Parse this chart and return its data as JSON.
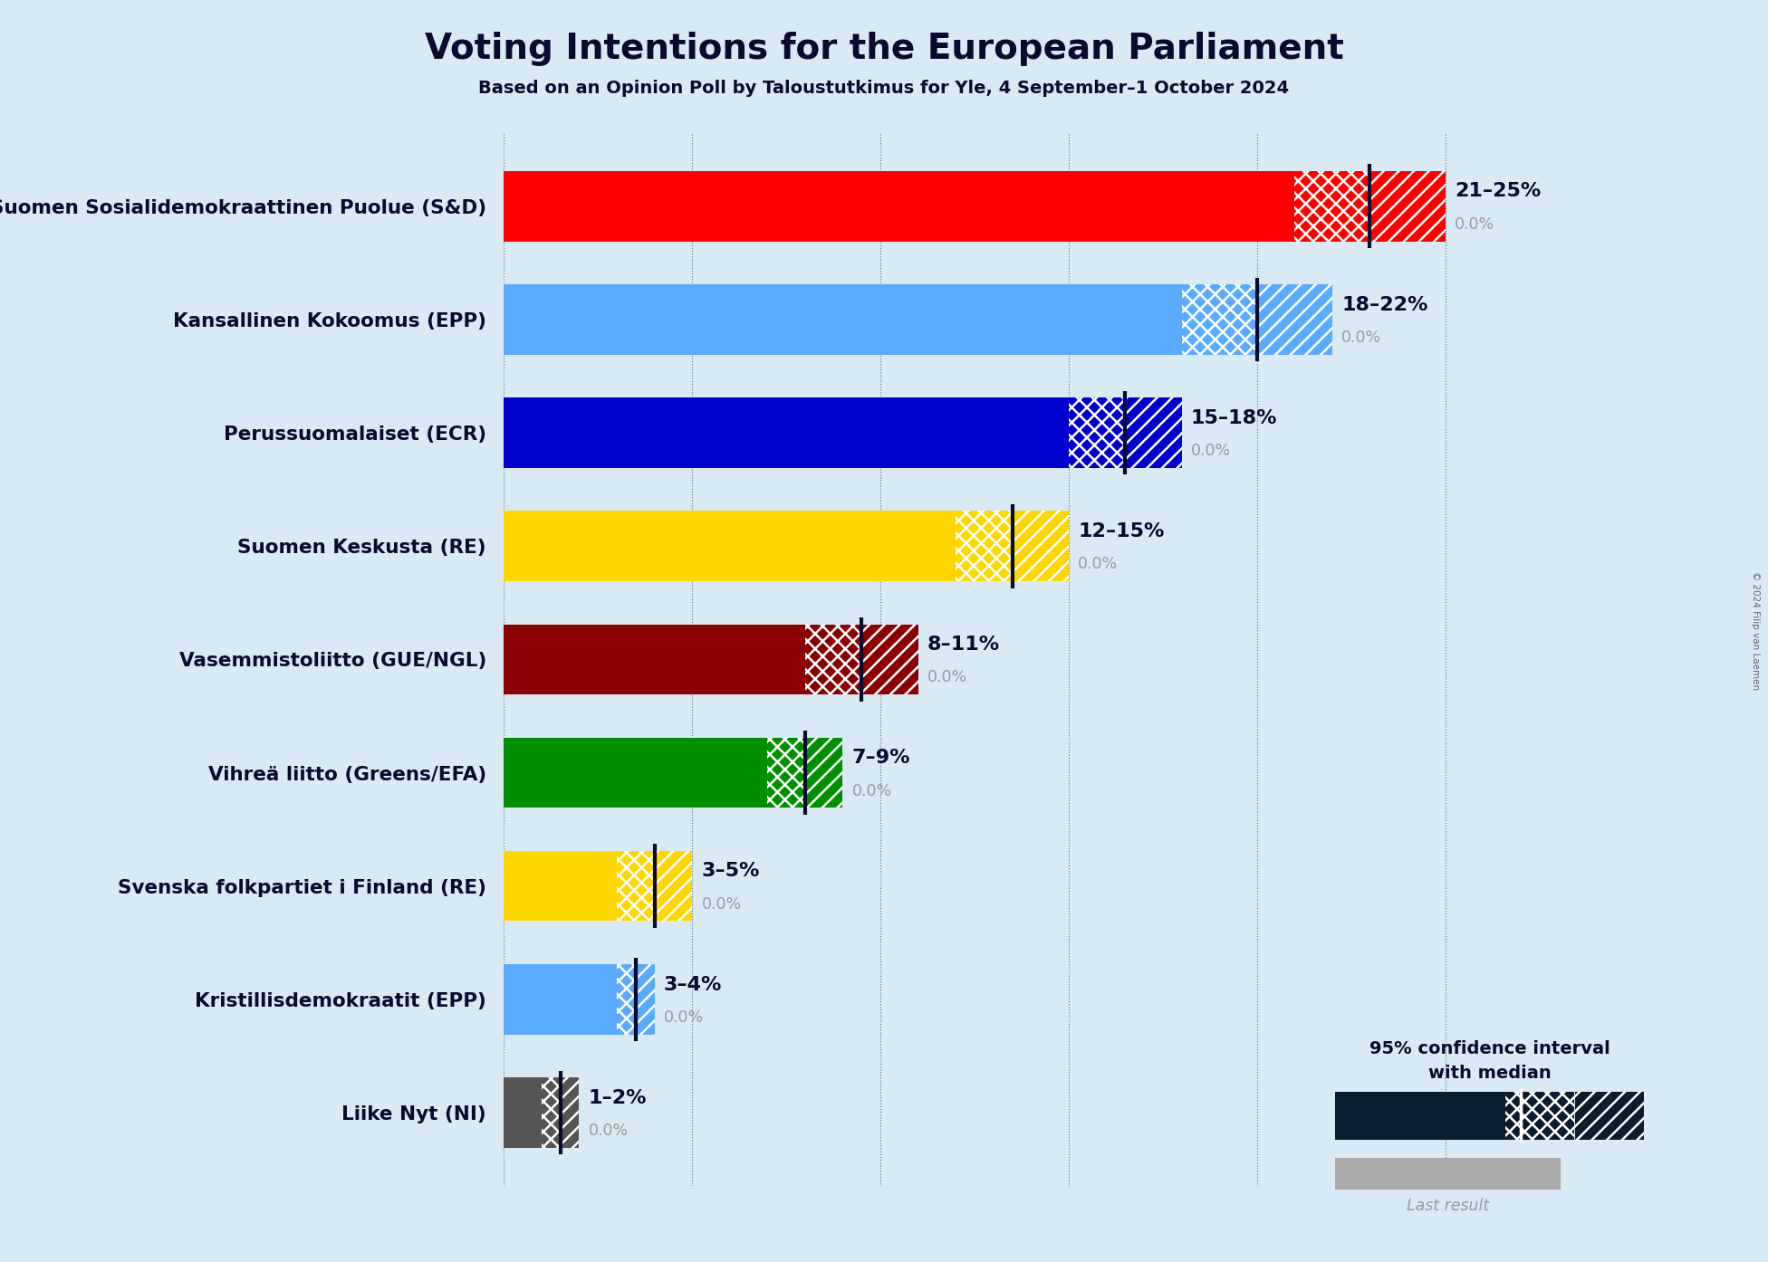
{
  "title": "Voting Intentions for the European Parliament",
  "subtitle": "Based on an Opinion Poll by Taloustutkimus for Yle, 4 September–1 October 2024",
  "copyright": "© 2024 Filip van Laemen",
  "background_color": "#daeaf5",
  "parties": [
    {
      "name": "Suomen Sosialidemokraattinen Puolue (S&D)",
      "low": 21,
      "high": 25,
      "median": 23,
      "last": 0.0,
      "color": "#ff0000"
    },
    {
      "name": "Kansallinen Kokoomus (EPP)",
      "low": 18,
      "high": 22,
      "median": 20,
      "last": 0.0,
      "color": "#5aabff"
    },
    {
      "name": "Perussuomalaiset (ECR)",
      "low": 15,
      "high": 18,
      "median": 16.5,
      "last": 0.0,
      "color": "#0000cc"
    },
    {
      "name": "Suomen Keskusta (RE)",
      "low": 12,
      "high": 15,
      "median": 13.5,
      "last": 0.0,
      "color": "#ffd700"
    },
    {
      "name": "Vasemmistoliitto (GUE/NGL)",
      "low": 8,
      "high": 11,
      "median": 9.5,
      "last": 0.0,
      "color": "#8b0000"
    },
    {
      "name": "Vihreä liitto (Greens/EFA)",
      "low": 7,
      "high": 9,
      "median": 8,
      "last": 0.0,
      "color": "#008f00"
    },
    {
      "name": "Svenska folkpartiet i Finland (RE)",
      "low": 3,
      "high": 5,
      "median": 4,
      "last": 0.0,
      "color": "#ffd700"
    },
    {
      "name": "Kristillisdemokraatit (EPP)",
      "low": 3,
      "high": 4,
      "median": 3.5,
      "last": 0.0,
      "color": "#5aabff"
    },
    {
      "name": "Liike Nyt (NI)",
      "low": 1,
      "high": 2,
      "median": 1.5,
      "last": 0.0,
      "color": "#555555"
    }
  ],
  "xlim_max": 27,
  "xtick_vals": [
    0,
    5,
    10,
    15,
    20,
    25
  ],
  "legend_text1": "95% confidence interval",
  "legend_text2": "with median",
  "legend_last": "Last result",
  "bar_height": 0.62
}
